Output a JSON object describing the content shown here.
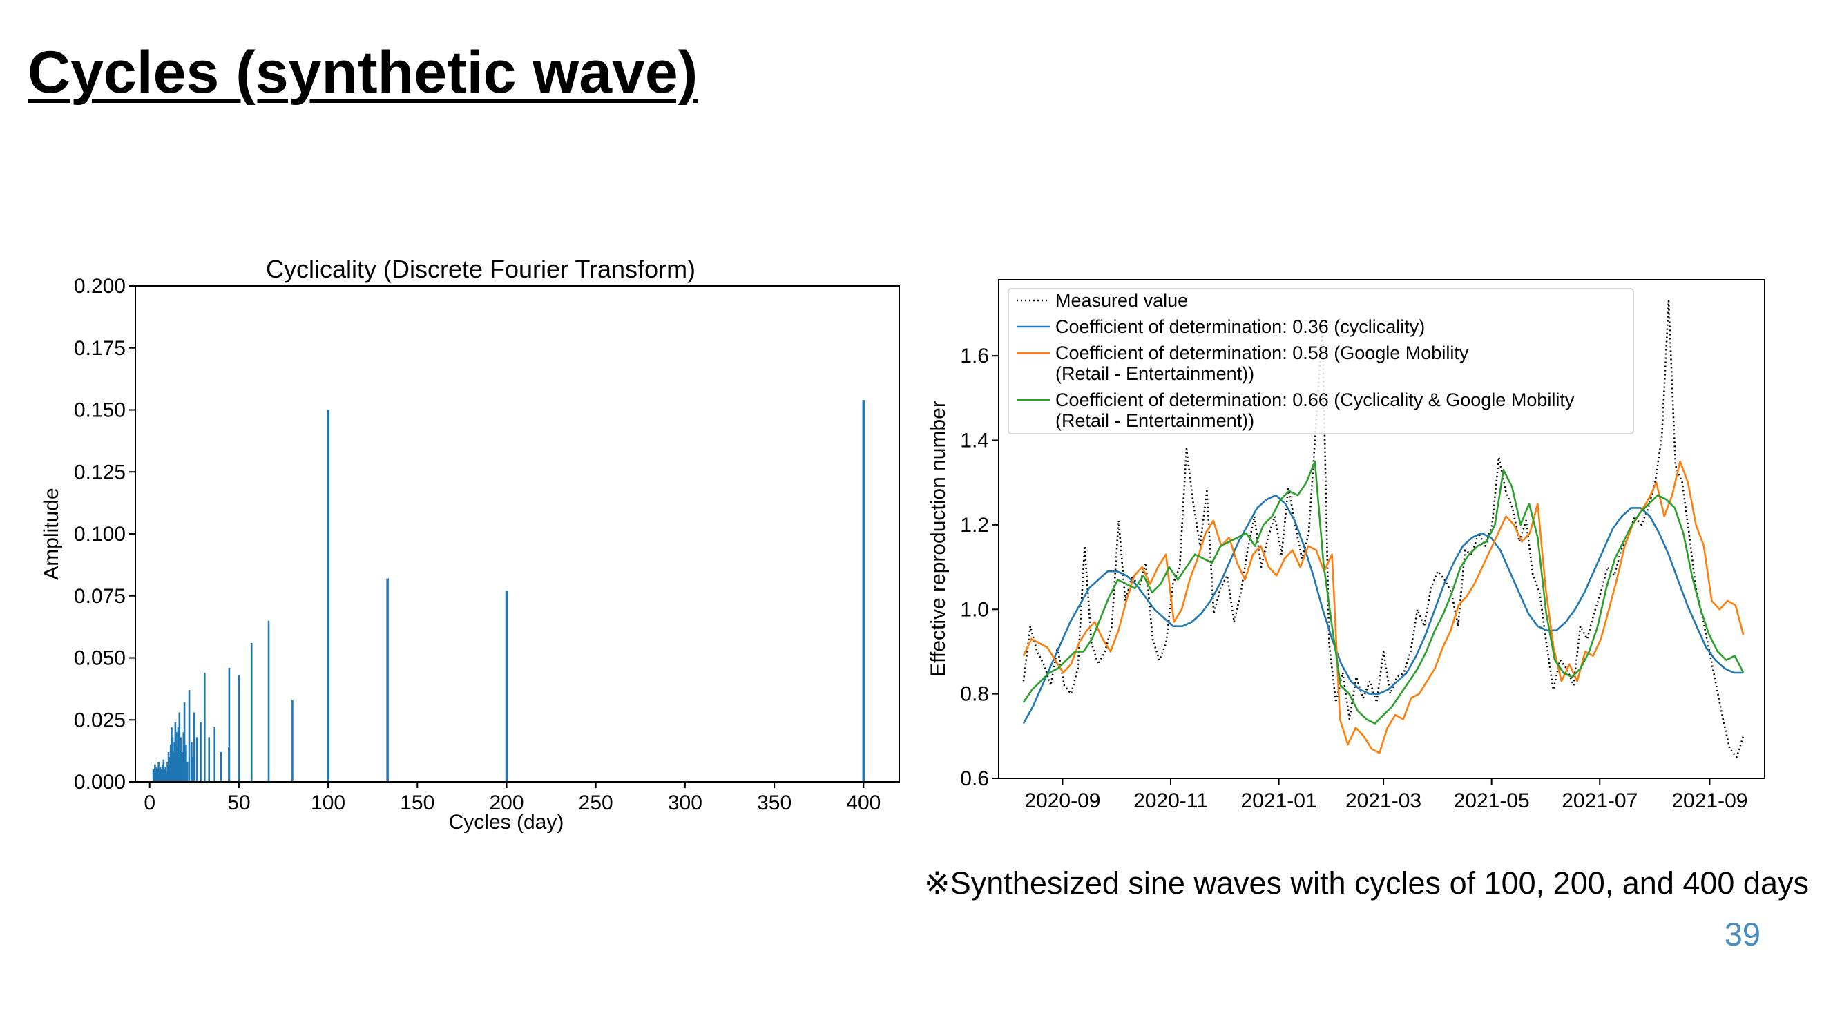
{
  "slide": {
    "title": "Cycles (synthetic wave)",
    "footnote": "※Synthesized sine waves with cycles of 100, 200, and 400 days",
    "page_number": "39",
    "colors": {
      "page_number": "#4a8ec0"
    }
  },
  "chart_data": [
    {
      "type": "bar",
      "title": "Cyclicality (Discrete Fourier Transform)",
      "xlabel": "Cycles (day)",
      "ylabel": "Amplitude",
      "xlim": [
        -8,
        420
      ],
      "ylim": [
        0,
        0.2
      ],
      "x_ticks": [
        0,
        50,
        100,
        150,
        200,
        250,
        300,
        350,
        400
      ],
      "y_ticks": [
        0.0,
        0.025,
        0.05,
        0.075,
        0.1,
        0.125,
        0.15,
        0.175,
        0.2
      ],
      "y_tick_labels": [
        "0.000",
        "0.025",
        "0.050",
        "0.075",
        "0.100",
        "0.125",
        "0.150",
        "0.175",
        "0.200"
      ],
      "grid": false,
      "color": "#1f77b4",
      "bars": [
        {
          "x": 2.1,
          "y": 0.005
        },
        {
          "x": 2.5,
          "y": 0.004
        },
        {
          "x": 3.0,
          "y": 0.007
        },
        {
          "x": 3.4,
          "y": 0.006
        },
        {
          "x": 3.8,
          "y": 0.004
        },
        {
          "x": 4.2,
          "y": 0.005
        },
        {
          "x": 4.6,
          "y": 0.003
        },
        {
          "x": 5.0,
          "y": 0.008
        },
        {
          "x": 5.5,
          "y": 0.004
        },
        {
          "x": 6.0,
          "y": 0.006
        },
        {
          "x": 6.4,
          "y": 0.005
        },
        {
          "x": 6.9,
          "y": 0.003
        },
        {
          "x": 7.3,
          "y": 0.007
        },
        {
          "x": 7.8,
          "y": 0.009
        },
        {
          "x": 8.3,
          "y": 0.005
        },
        {
          "x": 8.9,
          "y": 0.006
        },
        {
          "x": 9.5,
          "y": 0.004
        },
        {
          "x": 10.0,
          "y": 0.008
        },
        {
          "x": 10.6,
          "y": 0.012
        },
        {
          "x": 11.1,
          "y": 0.01
        },
        {
          "x": 11.8,
          "y": 0.015
        },
        {
          "x": 12.3,
          "y": 0.022
        },
        {
          "x": 12.9,
          "y": 0.018
        },
        {
          "x": 13.3,
          "y": 0.012
        },
        {
          "x": 14.0,
          "y": 0.016
        },
        {
          "x": 14.4,
          "y": 0.024
        },
        {
          "x": 15.0,
          "y": 0.02
        },
        {
          "x": 15.4,
          "y": 0.014
        },
        {
          "x": 16.0,
          "y": 0.022
        },
        {
          "x": 16.7,
          "y": 0.028
        },
        {
          "x": 17.4,
          "y": 0.018
        },
        {
          "x": 18.2,
          "y": 0.012
        },
        {
          "x": 19.0,
          "y": 0.02
        },
        {
          "x": 19.5,
          "y": 0.032
        },
        {
          "x": 20.4,
          "y": 0.015
        },
        {
          "x": 21.1,
          "y": 0.008
        },
        {
          "x": 22.2,
          "y": 0.037
        },
        {
          "x": 23.5,
          "y": 0.016
        },
        {
          "x": 24.2,
          "y": 0.01
        },
        {
          "x": 25.0,
          "y": 0.028
        },
        {
          "x": 26.5,
          "y": 0.018
        },
        {
          "x": 28.6,
          "y": 0.024
        },
        {
          "x": 30.8,
          "y": 0.044
        },
        {
          "x": 33.3,
          "y": 0.018
        },
        {
          "x": 36.4,
          "y": 0.022
        },
        {
          "x": 40.0,
          "y": 0.012
        },
        {
          "x": 44.4,
          "y": 0.014
        },
        {
          "x": 44.6,
          "y": 0.046
        },
        {
          "x": 50.0,
          "y": 0.043
        },
        {
          "x": 57.1,
          "y": 0.056
        },
        {
          "x": 66.7,
          "y": 0.065
        },
        {
          "x": 80.0,
          "y": 0.033
        },
        {
          "x": 100.0,
          "y": 0.15
        },
        {
          "x": 133.3,
          "y": 0.082
        },
        {
          "x": 200.0,
          "y": 0.077
        },
        {
          "x": 400.0,
          "y": 0.154
        }
      ]
    },
    {
      "type": "line",
      "title": "",
      "xlabel": "",
      "ylabel": "Effective reproduction number",
      "x_start": "2020-08-10",
      "x_end": "2021-09-20",
      "xlim": [
        "2020-07-27",
        "2021-10-02"
      ],
      "ylim": [
        0.6,
        1.78
      ],
      "x_ticks": [
        "2020-09-01",
        "2020-11-01",
        "2021-01-01",
        "2021-03-01",
        "2021-05-01",
        "2021-07-01",
        "2021-09-01"
      ],
      "x_tick_labels": [
        "2020-09",
        "2020-11",
        "2021-01",
        "2021-03",
        "2021-05",
        "2021-07",
        "2021-09"
      ],
      "y_ticks": [
        0.6,
        0.8,
        1.0,
        1.2,
        1.4,
        1.6
      ],
      "y_tick_labels": [
        "0.6",
        "0.8",
        "1.0",
        "1.2",
        "1.4",
        "1.6"
      ],
      "grid": false,
      "legend_position": "upper-left",
      "series": [
        {
          "name": "Measured value",
          "color": "#000000",
          "style": "dotted",
          "values": [
            0.83,
            0.96,
            0.9,
            0.87,
            0.82,
            0.91,
            0.82,
            0.8,
            0.86,
            1.15,
            0.92,
            0.87,
            0.9,
            0.96,
            1.21,
            1.02,
            1.08,
            1.05,
            1.11,
            0.93,
            0.88,
            0.92,
            1.06,
            1.1,
            1.38,
            1.25,
            1.15,
            1.28,
            0.99,
            1.05,
            1.08,
            0.97,
            1.04,
            1.14,
            1.22,
            1.1,
            1.17,
            1.22,
            1.13,
            1.29,
            1.2,
            1.12,
            1.18,
            1.42,
            1.67,
            0.92,
            0.78,
            0.85,
            0.74,
            0.84,
            0.79,
            0.83,
            0.78,
            0.9,
            0.8,
            0.84,
            0.85,
            0.9,
            1.0,
            0.96,
            1.05,
            1.09,
            1.07,
            1.04,
            0.96,
            1.14,
            1.13,
            1.18,
            1.15,
            1.2,
            1.36,
            1.28,
            1.24,
            1.16,
            1.21,
            1.08,
            1.04,
            0.92,
            0.81,
            0.88,
            0.86,
            0.82,
            0.96,
            0.93,
            0.99,
            1.04,
            1.1,
            1.08,
            1.14,
            1.17,
            1.22,
            1.2,
            1.24,
            1.3,
            1.41,
            1.73,
            1.34,
            1.3,
            1.18,
            1.05,
            0.98,
            0.9,
            0.82,
            0.74,
            0.67,
            0.65,
            0.7
          ]
        },
        {
          "name": "Coefficient of determination: 0.36 (cyclicality)",
          "color": "#1f77b4",
          "style": "solid",
          "values": [
            0.73,
            0.77,
            0.82,
            0.87,
            0.92,
            0.97,
            1.01,
            1.05,
            1.07,
            1.09,
            1.09,
            1.08,
            1.06,
            1.03,
            1.0,
            0.98,
            0.96,
            0.96,
            0.97,
            0.99,
            1.02,
            1.06,
            1.11,
            1.16,
            1.2,
            1.24,
            1.26,
            1.27,
            1.25,
            1.21,
            1.15,
            1.08,
            1.0,
            0.93,
            0.87,
            0.83,
            0.81,
            0.8,
            0.8,
            0.81,
            0.83,
            0.85,
            0.89,
            0.94,
            1.0,
            1.06,
            1.11,
            1.15,
            1.17,
            1.18,
            1.17,
            1.14,
            1.09,
            1.04,
            0.99,
            0.96,
            0.95,
            0.95,
            0.97,
            1.0,
            1.04,
            1.09,
            1.14,
            1.19,
            1.22,
            1.24,
            1.24,
            1.22,
            1.18,
            1.13,
            1.07,
            1.01,
            0.96,
            0.91,
            0.88,
            0.86,
            0.85,
            0.85
          ]
        },
        {
          "name": "Coefficient of determination: 0.58 (Google Mobility (Retail - Entertainment))",
          "color": "#ff7f0e",
          "style": "solid",
          "values": [
            0.89,
            0.93,
            0.92,
            0.91,
            0.88,
            0.85,
            0.87,
            0.92,
            0.95,
            0.97,
            0.93,
            0.9,
            0.95,
            1.02,
            1.08,
            1.1,
            1.06,
            1.1,
            1.13,
            0.97,
            1.0,
            1.07,
            1.12,
            1.18,
            1.21,
            1.15,
            1.17,
            1.11,
            1.07,
            1.13,
            1.15,
            1.1,
            1.08,
            1.12,
            1.14,
            1.1,
            1.15,
            1.14,
            1.09,
            1.13,
            0.74,
            0.68,
            0.72,
            0.7,
            0.67,
            0.66,
            0.72,
            0.75,
            0.74,
            0.79,
            0.8,
            0.83,
            0.86,
            0.91,
            0.95,
            1.01,
            1.03,
            1.06,
            1.1,
            1.14,
            1.18,
            1.22,
            1.2,
            1.16,
            1.18,
            1.25,
            1.05,
            0.91,
            0.83,
            0.87,
            0.83,
            0.9,
            0.89,
            0.93,
            1.0,
            1.07,
            1.15,
            1.2,
            1.23,
            1.26,
            1.3,
            1.22,
            1.27,
            1.35,
            1.3,
            1.2,
            1.15,
            1.02,
            1.0,
            1.02,
            1.01,
            0.94
          ]
        },
        {
          "name": "Coefficient of determination: 0.66 (Cyclicality & Google Mobility (Retail - Entertainment))",
          "color": "#2ca02c",
          "style": "solid",
          "values": [
            0.78,
            0.81,
            0.83,
            0.85,
            0.86,
            0.88,
            0.9,
            0.9,
            0.93,
            0.98,
            1.03,
            1.07,
            1.06,
            1.05,
            1.08,
            1.04,
            1.06,
            1.1,
            1.07,
            1.1,
            1.13,
            1.12,
            1.11,
            1.15,
            1.16,
            1.17,
            1.18,
            1.15,
            1.2,
            1.22,
            1.26,
            1.28,
            1.27,
            1.3,
            1.35,
            1.11,
            0.96,
            0.82,
            0.8,
            0.76,
            0.74,
            0.73,
            0.75,
            0.77,
            0.8,
            0.83,
            0.86,
            0.9,
            0.95,
            0.99,
            1.04,
            1.1,
            1.13,
            1.15,
            1.16,
            1.2,
            1.33,
            1.29,
            1.2,
            1.25,
            1.17,
            0.99,
            0.88,
            0.85,
            0.84,
            0.86,
            0.9,
            0.96,
            1.05,
            1.12,
            1.16,
            1.2,
            1.23,
            1.25,
            1.27,
            1.26,
            1.24,
            1.18,
            1.08,
            1.0,
            0.94,
            0.9,
            0.88,
            0.89,
            0.85
          ]
        }
      ],
      "legend_lines": [
        [
          "Measured value"
        ],
        [
          "Coefficient of determination: 0.36 (cyclicality)"
        ],
        [
          "Coefficient of determination: 0.58 (Google Mobility",
          "(Retail - Entertainment))"
        ],
        [
          "Coefficient of determination: 0.66 (Cyclicality & Google Mobility",
          "(Retail - Entertainment))"
        ]
      ]
    }
  ]
}
